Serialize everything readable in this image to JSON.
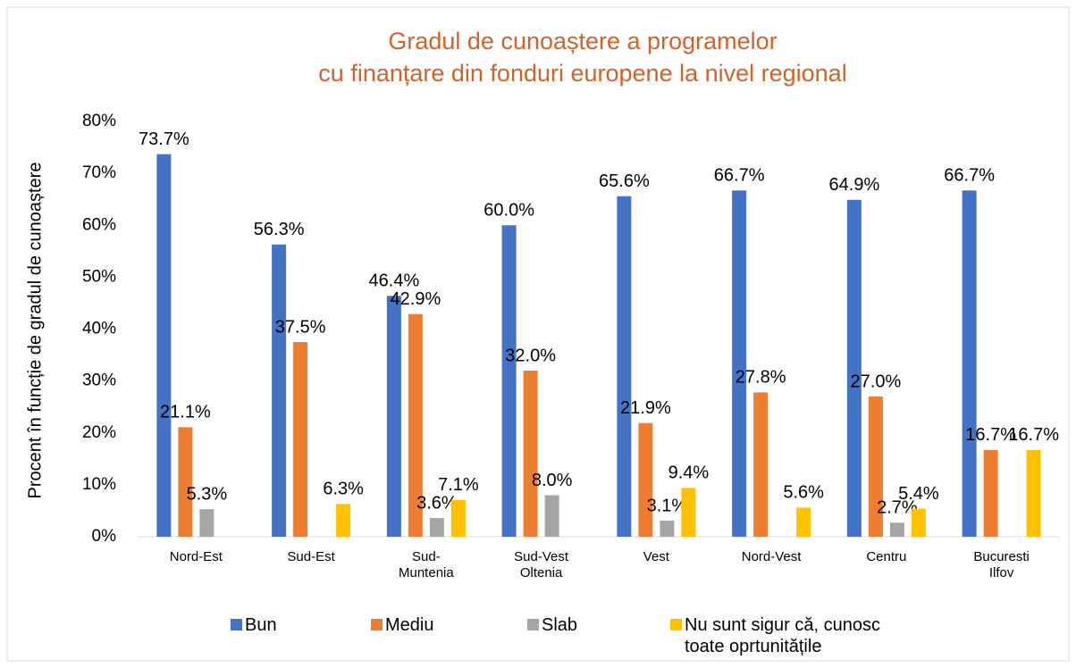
{
  "chart_data": {
    "type": "bar",
    "title": [
      "Gradul de cunoaștere a programelor",
      "cu finanțare din fonduri europene  la nivel regional"
    ],
    "y_label": "Procent în funcție de gradul de cunoaștere",
    "categories": [
      "Nord-Est",
      "Sud-Est",
      "Sud-Muntenia",
      "Sud-Vest Oltenia",
      "Vest",
      "Nord-Vest",
      "Centru",
      "Bucuresti Ilfov"
    ],
    "series": [
      {
        "name": "Bun",
        "color": "#4472c4",
        "values": [
          73.7,
          56.3,
          46.4,
          60.0,
          65.6,
          66.7,
          64.9,
          66.7
        ],
        "value_labels": [
          "73.7%",
          "56.3%",
          "46.4%",
          "60.0%",
          "65.6%",
          "66.7%",
          "64.9%",
          "66.7%"
        ]
      },
      {
        "name": "Mediu",
        "color": "#ed7d31",
        "values": [
          21.1,
          37.5,
          42.9,
          32.0,
          21.9,
          27.8,
          27.0,
          16.7
        ],
        "value_labels": [
          "21.1%",
          "37.5%",
          "42.9%",
          "32.0%",
          "21.9%",
          "27.8%",
          "27.0%",
          "16.7%"
        ]
      },
      {
        "name": "Slab",
        "color": "#a5a5a5",
        "values": [
          5.3,
          null,
          3.6,
          8.0,
          3.1,
          null,
          2.7,
          null
        ],
        "value_labels": [
          "5.3%",
          null,
          "3.6%",
          "8.0%",
          "3.1%",
          null,
          "2.7%",
          null
        ]
      },
      {
        "name": "Nu sunt sigur că, cunosc toate oprtunitățile",
        "color": "#ffc000",
        "values": [
          null,
          6.3,
          7.1,
          null,
          9.4,
          5.6,
          5.4,
          16.7
        ],
        "value_labels": [
          null,
          "6.3%",
          "7.1%",
          null,
          "9.4%",
          "5.6%",
          "5.4%",
          "16.7%"
        ]
      }
    ],
    "ylim": [
      0,
      80
    ],
    "yticks": [
      {
        "value": 0,
        "label": "0%"
      },
      {
        "value": 10,
        "label": "10%"
      },
      {
        "value": 20,
        "label": "20%"
      },
      {
        "value": 30,
        "label": "30%"
      },
      {
        "value": 40,
        "label": "40%"
      },
      {
        "value": 50,
        "label": "50%"
      },
      {
        "value": 60,
        "label": "60%"
      },
      {
        "value": 70,
        "label": "70%"
      },
      {
        "value": 80,
        "label": "80%"
      }
    ],
    "grid": false,
    "legend": "bottom"
  }
}
